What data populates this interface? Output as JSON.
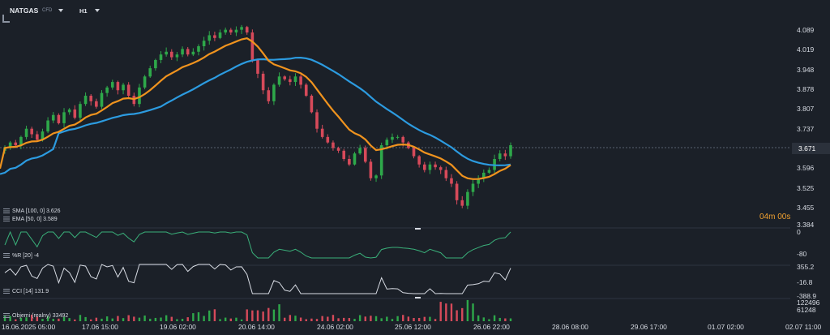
{
  "header": {
    "symbol": "NATGAS",
    "instrument_type": "CFD",
    "timeframe": "H1"
  },
  "price_axis": [
    "4.089",
    "4.019",
    "3.948",
    "3.878",
    "3.807",
    "3.737",
    "3.671",
    "3.596",
    "3.525",
    "3.455",
    "3.384"
  ],
  "current_price": "3.671",
  "countdown": "04m 00s",
  "indicators": {
    "sma": "SMA [100, 0] 3.626",
    "ema": "EMA [50, 0] 3.589",
    "wr": "%R [20] -4",
    "wr_axis": [
      "0",
      "-80"
    ],
    "cci": "CCI [14] 131.9",
    "cci_axis": [
      "355.2",
      "-16.8",
      "-388.9"
    ],
    "volume": "Objemi (realny) 33492",
    "volume_axis": [
      "122496",
      "61248"
    ]
  },
  "time_axis": [
    "16.06.2025 05:00",
    "17.06 15:00",
    "19.06 02:00",
    "20.06 14:00",
    "24.06 02:00",
    "25.06 12:00",
    "26.06 22:00",
    "28.06 08:00",
    "29.06 17:00",
    "01.07 02:00",
    "02.07 11:00"
  ],
  "colors": {
    "background": "#1b2028",
    "up": "#2ea84a",
    "down": "#d64a5a",
    "sma": "#2c9be0",
    "ema": "#f0931e",
    "oscillator": "#3ab07a",
    "cci": "#d8dce4"
  },
  "chart_data": {
    "type": "candlestick",
    "y_range": [
      3.384,
      4.089
    ],
    "closes": [
      3.66,
      3.68,
      3.67,
      3.7,
      3.73,
      3.71,
      3.69,
      3.72,
      3.76,
      3.78,
      3.75,
      3.79,
      3.8,
      3.77,
      3.82,
      3.85,
      3.83,
      3.81,
      3.86,
      3.88,
      3.9,
      3.87,
      3.89,
      3.85,
      3.82,
      3.88,
      3.92,
      3.95,
      3.98,
      4.0,
      4.01,
      3.99,
      4.0,
      4.02,
      4.0,
      4.01,
      4.03,
      4.05,
      4.07,
      4.06,
      4.08,
      4.09,
      4.08,
      4.09,
      4.1,
      4.08,
      3.98,
      3.93,
      3.87,
      3.83,
      3.89,
      3.92,
      3.91,
      3.9,
      3.92,
      3.89,
      3.85,
      3.79,
      3.73,
      3.7,
      3.68,
      3.66,
      3.65,
      3.62,
      3.6,
      3.64,
      3.66,
      3.61,
      3.55,
      3.56,
      3.67,
      3.69,
      3.7,
      3.7,
      3.68,
      3.66,
      3.63,
      3.6,
      3.58,
      3.6,
      3.59,
      3.58,
      3.55,
      3.53,
      3.47,
      3.45,
      3.5,
      3.53,
      3.55,
      3.57,
      3.58,
      3.62,
      3.64,
      3.63,
      3.67
    ],
    "sma_100": 3.626,
    "ema_50": 3.589,
    "wr_20": -4,
    "cci_14": 131.9,
    "volume": 33492
  }
}
